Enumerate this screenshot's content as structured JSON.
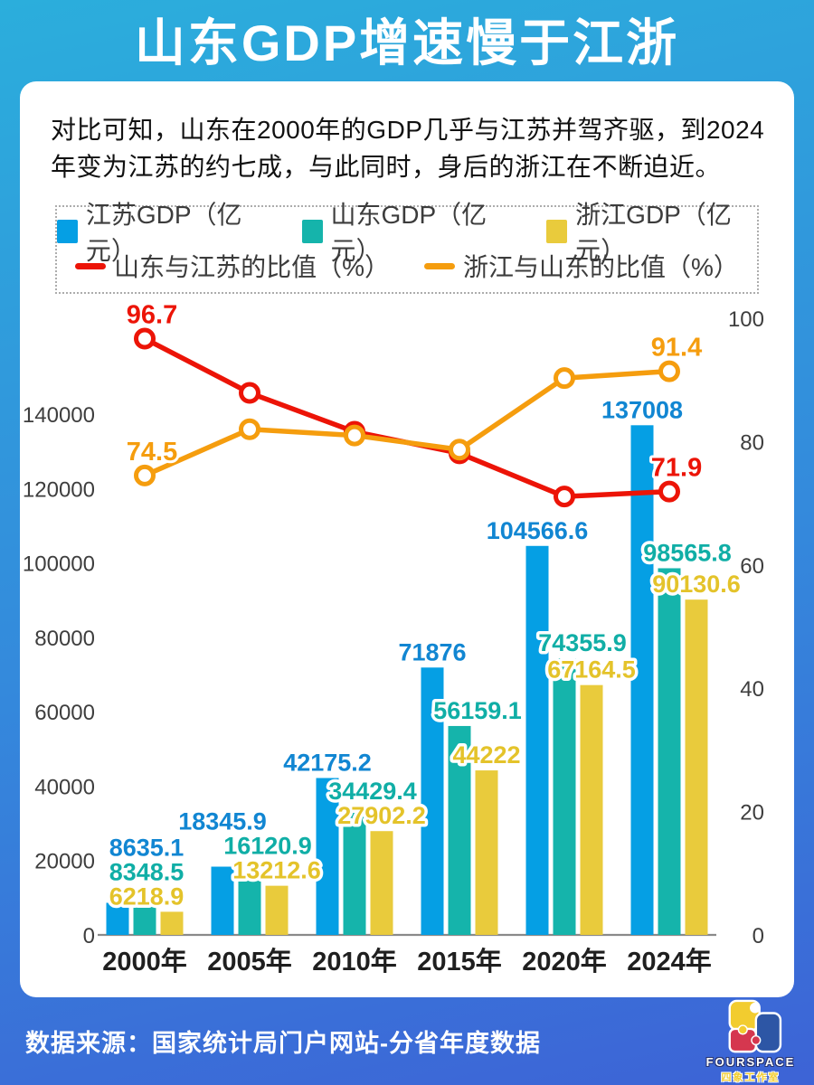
{
  "page": {
    "title": "山东GDP增速慢于江浙",
    "subtitle": "对比可知，山东在2000年的GDP几乎与江苏并驾齐驱，到2024\n年变为江苏的约七成，与此同时，身后的浙江在不断迫近。",
    "source": "数据来源：国家统计局门户网站-分省年度数据",
    "logo": {
      "brand": "FOURSPACE",
      "brand_cn": "四象工作室"
    }
  },
  "colors": {
    "jiangsu": "#059FE4",
    "jiangsu_label": "#1186D2",
    "shandong": "#15B4AB",
    "shandong_label": "#10AEA6",
    "zhejiang": "#E9CB3C",
    "zhejiang_label": "#E4C32A",
    "ratio_sj": "#EC1407",
    "ratio_zs": "#F59D0E",
    "bg_top": "#2BAEDC",
    "bg_bottom": "#3D63D6"
  },
  "legend": {
    "bars": [
      {
        "label": "江苏GDP（亿元）",
        "color_key": "jiangsu"
      },
      {
        "label": "山东GDP（亿元）",
        "color_key": "shandong"
      },
      {
        "label": "浙江GDP（亿元）",
        "color_key": "zhejiang"
      }
    ],
    "ratios": [
      {
        "label": "山东与江苏的比值（%）",
        "color_key": "ratio_sj"
      },
      {
        "label": "浙江与山东的比值（%）",
        "color_key": "ratio_zs"
      }
    ]
  },
  "chart_data": {
    "type": "bar",
    "subtype": "grouped bars with two line series on secondary axis",
    "categories": [
      "2000年",
      "2005年",
      "2010年",
      "2015年",
      "2020年",
      "2024年"
    ],
    "bar_series": [
      {
        "name": "江苏GDP（亿元）",
        "color_key": "jiangsu",
        "label_color_key": "jiangsu_label",
        "values": [
          8635.1,
          18345.9,
          42175.2,
          71876,
          104566.6,
          137008
        ],
        "labels": [
          "8635.1",
          "18345.9",
          "42175.2",
          "71876",
          "104566.6",
          "137008"
        ]
      },
      {
        "name": "山东GDP（亿元）",
        "color_key": "shandong",
        "label_color_key": "shandong_label",
        "values": [
          8348.5,
          16120.9,
          34429.4,
          56159.1,
          74355.9,
          98565.8
        ],
        "labels": [
          "8348.5",
          "16120.9",
          "34429.4",
          "56159.1",
          "74355.9",
          "98565.8"
        ]
      },
      {
        "name": "浙江GDP（亿元）",
        "color_key": "zhejiang",
        "label_color_key": "zhejiang_label",
        "values": [
          6218.9,
          13212.6,
          27902.2,
          44222,
          67164.5,
          90130.6
        ],
        "labels": [
          "6218.9",
          "13212.6",
          "27902.2",
          "44222",
          "67164.5",
          "90130.6"
        ]
      }
    ],
    "line_series": [
      {
        "name": "山东与江苏的比值（%）",
        "color_key": "ratio_sj",
        "values": [
          96.7,
          87.9,
          81.6,
          78.1,
          71.1,
          71.9
        ],
        "point_labels": [
          "96.7",
          null,
          null,
          null,
          null,
          "71.9"
        ]
      },
      {
        "name": "浙江与山东的比值（%）",
        "color_key": "ratio_zs",
        "values": [
          74.5,
          82.0,
          81.0,
          78.7,
          90.3,
          91.4
        ],
        "point_labels": [
          "74.5",
          null,
          null,
          null,
          null,
          "91.4"
        ]
      }
    ],
    "left_axis": {
      "ticks": [
        0,
        20000,
        40000,
        60000,
        80000,
        100000,
        120000,
        140000
      ],
      "max": 140000
    },
    "right_axis": {
      "ticks": [
        0,
        20,
        40,
        60,
        80,
        100
      ],
      "max": 100
    },
    "grid": false,
    "legend_position": "top"
  }
}
